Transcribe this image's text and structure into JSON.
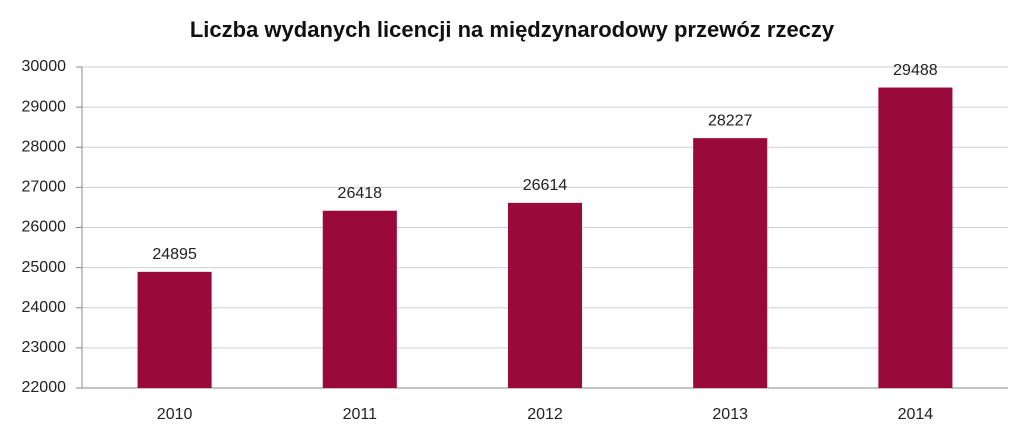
{
  "chart_data": {
    "type": "bar",
    "title": "Liczba wydanych licencji na międzynarodowy przewóz rzeczy",
    "categories": [
      "2010",
      "2011",
      "2012",
      "2013",
      "2014"
    ],
    "values": [
      24895,
      26418,
      26614,
      28227,
      29488
    ],
    "color": "#990a3a",
    "ylim": [
      22000,
      30000
    ],
    "yticks": [
      22000,
      23000,
      24000,
      25000,
      26000,
      27000,
      28000,
      29000,
      30000
    ],
    "grid": true,
    "data_labels": true
  }
}
